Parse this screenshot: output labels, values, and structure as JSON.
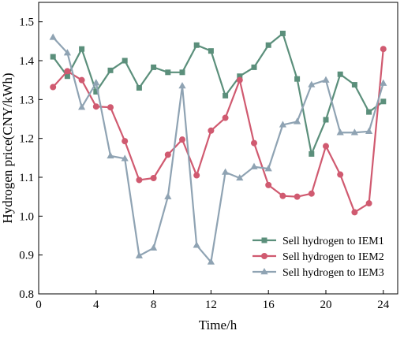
{
  "chart_data": {
    "type": "line",
    "title": "",
    "xlabel": "Time/h",
    "ylabel": "Hydrogen price(CNY/kWh)",
    "xlim": [
      0,
      25
    ],
    "ylim": [
      0.8,
      1.55
    ],
    "x_ticks": [
      0,
      4,
      8,
      12,
      16,
      20,
      24
    ],
    "x_tick_labels": [
      "0",
      "4",
      "8",
      "12",
      "16",
      "20",
      "24"
    ],
    "y_ticks": [
      0.8,
      0.9,
      1.0,
      1.1,
      1.2,
      1.3,
      1.4,
      1.5
    ],
    "y_tick_labels": [
      "0.8",
      "0.9",
      "1.0",
      "1.1",
      "1.2",
      "1.3",
      "1.4",
      "1.5"
    ],
    "grid": false,
    "legend_position": "bottom-right",
    "x": [
      1,
      2,
      3,
      4,
      5,
      6,
      7,
      8,
      9,
      10,
      11,
      12,
      13,
      14,
      15,
      16,
      17,
      18,
      19,
      20,
      21,
      22,
      23,
      24
    ],
    "series": [
      {
        "name": "Sell hydrogen to IEM1",
        "color": "#5b8f7b",
        "marker": "square",
        "values": [
          1.41,
          1.36,
          1.43,
          1.32,
          1.375,
          1.4,
          1.33,
          1.383,
          1.37,
          1.37,
          1.44,
          1.425,
          1.31,
          1.36,
          1.383,
          1.44,
          1.47,
          1.353,
          1.16,
          1.248,
          1.365,
          1.338,
          1.268,
          1.295
        ]
      },
      {
        "name": "Sell hydrogen to IEM2",
        "color": "#d05a70",
        "marker": "circle",
        "values": [
          1.332,
          1.373,
          1.35,
          1.282,
          1.28,
          1.193,
          1.093,
          1.098,
          1.158,
          1.197,
          1.105,
          1.22,
          1.253,
          1.35,
          1.188,
          1.08,
          1.052,
          1.05,
          1.058,
          1.18,
          1.107,
          1.01,
          1.033,
          1.43
        ]
      },
      {
        "name": "Sell hydrogen to IEM3",
        "color": "#8fa3b3",
        "marker": "triangle",
        "values": [
          1.46,
          1.42,
          1.28,
          1.343,
          1.155,
          1.148,
          0.898,
          0.918,
          1.05,
          1.335,
          0.925,
          0.882,
          1.113,
          1.098,
          1.127,
          1.122,
          1.235,
          1.243,
          1.338,
          1.35,
          1.215,
          1.215,
          1.218,
          1.342
        ]
      }
    ]
  }
}
